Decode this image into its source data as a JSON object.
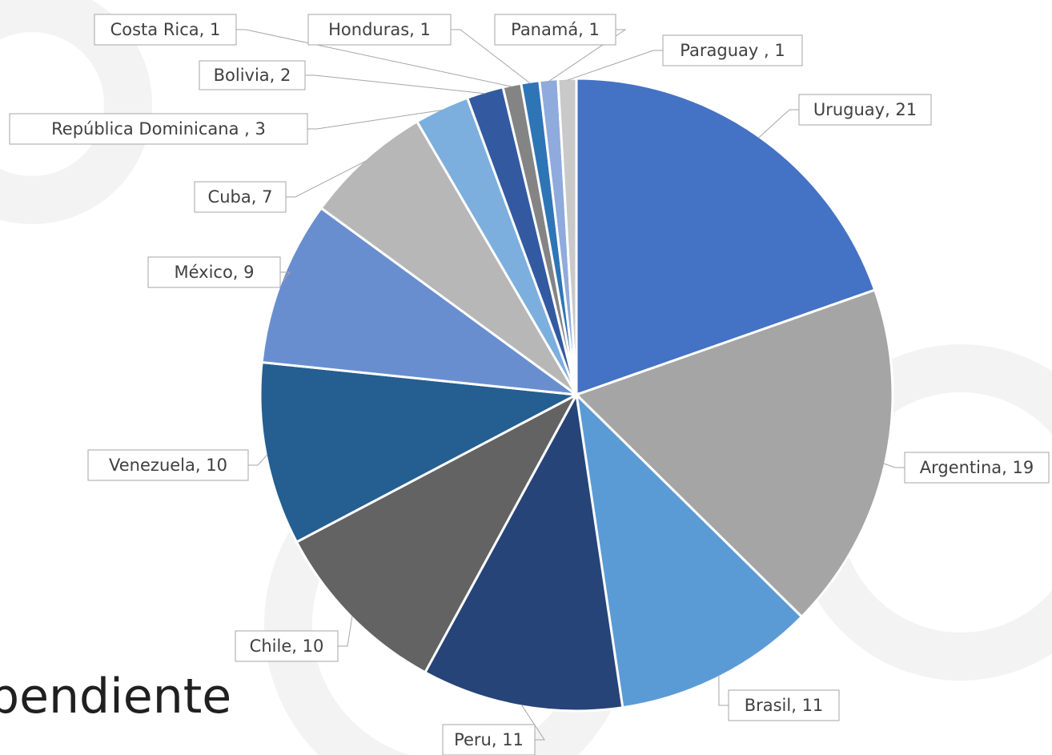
{
  "chart_data": {
    "type": "pie",
    "values": [
      21,
      19,
      11,
      11,
      10,
      10,
      9,
      7,
      3,
      2,
      1,
      1,
      1,
      1
    ],
    "value_labels": [
      "Uruguay, 21",
      "Argentina, 19",
      "Brasil, 11",
      "Peru, 11",
      "Chile, 10",
      "Venezuela, 10",
      "México, 9",
      "Cuba, 7",
      "República Dominicana , 3",
      "Bolivia, 2",
      "Costa Rica, 1",
      "Honduras, 1",
      "Panamá, 1",
      "Paraguay , 1"
    ],
    "colors": [
      "#4472c4",
      "#a5a5a5",
      "#5b9bd5",
      "#264478",
      "#636363",
      "#255e91",
      "#698ed0",
      "#b7b7b7",
      "#7cafdd",
      "#335aa1",
      "#848484",
      "#2e75b6",
      "#8faadc",
      "#c9c9c9"
    ]
  },
  "background_text": "pendiente"
}
